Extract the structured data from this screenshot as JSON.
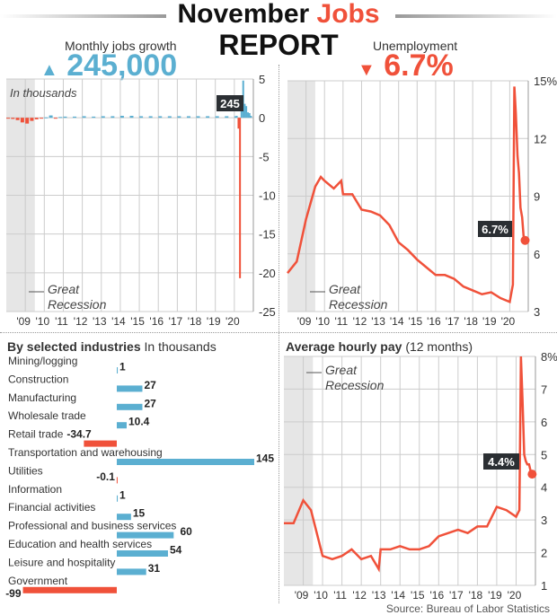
{
  "header": {
    "title_part1": "November",
    "title_part2": "Jobs",
    "title_line2": "REPORT"
  },
  "jobs": {
    "label": "Monthly jobs growth",
    "headline": "245,000",
    "direction_icon": "triangle-up-icon"
  },
  "unemployment": {
    "label": "Unemployment",
    "headline": "6.7%",
    "direction_icon": "triangle-down-icon"
  },
  "source": "Source: Bureau of Labor Statistics",
  "colors": {
    "blue": "#5bafd1",
    "red": "#f0513a",
    "recession": "#e6e6e6",
    "callout": "#2b2f33"
  },
  "chart_data": [
    {
      "type": "bar",
      "id": "jobs",
      "note": "In thousands",
      "ylim": [
        -25,
        5
      ],
      "yticks": [
        "5",
        "0",
        "-5",
        "-10",
        "-15",
        "-20",
        "-25"
      ],
      "xticks": [
        "'09",
        "'10",
        "'11",
        "'12",
        "'13",
        "'14",
        "'15",
        "'16",
        "'17",
        "'18",
        "'19",
        "'20"
      ],
      "recession_label": "Great Recession",
      "callout": "245",
      "x": [
        2008.0,
        2008.25,
        2008.5,
        2008.75,
        2009.0,
        2009.25,
        2009.5,
        2009.75,
        2010.0,
        2010.25,
        2010.5,
        2010.75,
        2011.0,
        2011.5,
        2012.0,
        2012.5,
        2013.0,
        2013.5,
        2014.0,
        2014.5,
        2015.0,
        2015.5,
        2016.0,
        2016.5,
        2017.0,
        2017.5,
        2018.0,
        2018.5,
        2019.0,
        2019.5,
        2020.0,
        2020.08,
        2020.17,
        2020.25,
        2020.33,
        2020.42,
        2020.5,
        2020.58,
        2020.67,
        2020.75,
        2020.83
      ],
      "values": [
        -0.05,
        -0.15,
        -0.3,
        -0.6,
        -0.75,
        -0.4,
        -0.2,
        -0.1,
        0.05,
        0.3,
        -0.05,
        0.1,
        0.15,
        0.15,
        0.2,
        0.15,
        0.2,
        0.2,
        0.25,
        0.25,
        0.2,
        0.2,
        0.2,
        0.2,
        0.2,
        0.2,
        0.2,
        0.2,
        0.2,
        0.2,
        0.2,
        0.25,
        -1.4,
        -20.7,
        2.7,
        4.8,
        1.8,
        1.5,
        0.7,
        0.6,
        0.245
      ]
    },
    {
      "type": "line",
      "id": "unemployment",
      "ylim": [
        3,
        15
      ],
      "yticks": [
        "15%",
        "12",
        "9",
        "6",
        "3"
      ],
      "xticks": [
        "'09",
        "'10",
        "'11",
        "'12",
        "'13",
        "'14",
        "'15",
        "'16",
        "'17",
        "'18",
        "'19",
        "'20"
      ],
      "recession_label": "Great Recession",
      "callout": "6.7%",
      "x": [
        2008.0,
        2008.5,
        2009.0,
        2009.5,
        2009.8,
        2010.0,
        2010.5,
        2010.9,
        2011.0,
        2011.5,
        2012.0,
        2012.5,
        2013.0,
        2013.5,
        2014.0,
        2014.5,
        2015.0,
        2015.5,
        2016.0,
        2016.5,
        2017.0,
        2017.5,
        2018.0,
        2018.5,
        2019.0,
        2019.5,
        2020.0,
        2020.17,
        2020.25,
        2020.33,
        2020.42,
        2020.5,
        2020.58,
        2020.67,
        2020.75,
        2020.83
      ],
      "values": [
        5.0,
        5.6,
        7.8,
        9.5,
        10.0,
        9.8,
        9.4,
        9.8,
        9.1,
        9.1,
        8.3,
        8.2,
        8.0,
        7.5,
        6.6,
        6.2,
        5.7,
        5.3,
        4.9,
        4.9,
        4.7,
        4.3,
        4.1,
        3.9,
        4.0,
        3.7,
        3.5,
        4.4,
        14.7,
        13.3,
        11.1,
        10.2,
        8.4,
        7.9,
        6.9,
        6.7
      ]
    },
    {
      "type": "bar",
      "orientation": "horizontal",
      "id": "industries",
      "title": "By selected industries",
      "unit": "In thousands",
      "categories": [
        "Mining/logging",
        "Construction",
        "Manufacturing",
        "Wholesale trade",
        "Retail trade",
        "Transportation and warehousing",
        "Utilities",
        "Information",
        "Financial activities",
        "Professional and business services",
        "Education and health services",
        "Leisure and hospitality",
        "Government"
      ],
      "values": [
        1,
        27,
        27,
        10.4,
        -34.7,
        145,
        -0.1,
        1,
        15,
        60,
        54,
        31,
        -99
      ],
      "labels": [
        "1",
        "27",
        "27",
        "10.4",
        "-34.7",
        "145",
        "-0.1",
        "1",
        "15",
        "60",
        "54",
        "31",
        "-99"
      ]
    },
    {
      "type": "line",
      "id": "hourly-pay",
      "title": "Average hourly pay",
      "subtitle": "(12 months)",
      "ylim": [
        1,
        8
      ],
      "yticks": [
        "8%",
        "7",
        "6",
        "5",
        "4",
        "3",
        "2",
        "1"
      ],
      "xticks": [
        "'09",
        "'10",
        "'11",
        "'12",
        "'13",
        "'14",
        "'15",
        "'16",
        "'17",
        "'18",
        "'19",
        "'20"
      ],
      "recession_label": "Great Recession",
      "callout": "4.4%",
      "x": [
        2008.0,
        2008.5,
        2009.0,
        2009.4,
        2009.7,
        2010.0,
        2010.5,
        2011.0,
        2011.5,
        2012.0,
        2012.5,
        2012.9,
        2013.0,
        2013.5,
        2014.0,
        2014.5,
        2015.0,
        2015.5,
        2016.0,
        2016.5,
        2017.0,
        2017.5,
        2018.0,
        2018.5,
        2019.0,
        2019.5,
        2020.0,
        2020.17,
        2020.25,
        2020.33,
        2020.42,
        2020.5,
        2020.58,
        2020.67,
        2020.75,
        2020.83
      ],
      "values": [
        2.9,
        2.9,
        3.6,
        3.3,
        2.6,
        1.9,
        1.8,
        1.9,
        2.1,
        1.8,
        1.9,
        1.5,
        2.1,
        2.1,
        2.2,
        2.1,
        2.1,
        2.2,
        2.5,
        2.6,
        2.7,
        2.6,
        2.8,
        2.8,
        3.4,
        3.3,
        3.1,
        3.3,
        8.0,
        6.7,
        5.0,
        4.8,
        4.7,
        4.7,
        4.5,
        4.4
      ]
    }
  ]
}
